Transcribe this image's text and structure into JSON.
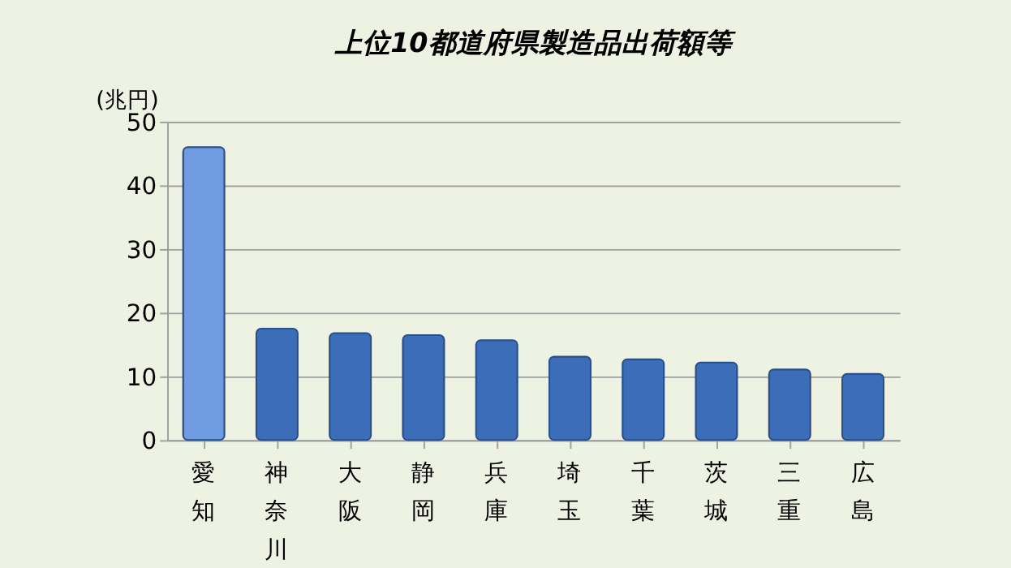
{
  "chart_data": {
    "type": "bar",
    "title": "上位10都道府県製造品出荷額等",
    "ylabel": "(兆円)",
    "categories": [
      "愛知",
      "神奈川",
      "大阪",
      "静岡",
      "兵庫",
      "埼玉",
      "千葉",
      "茨城",
      "三重",
      "広島"
    ],
    "values": [
      46,
      17.5,
      16.8,
      16.5,
      15.7,
      13.1,
      12.7,
      12.2,
      11.1,
      10.4
    ],
    "colors": [
      "#6f9be0",
      "#3b6db8",
      "#3b6db8",
      "#3b6db8",
      "#3b6db8",
      "#3b6db8",
      "#3b6db8",
      "#3b6db8",
      "#3b6db8",
      "#3b6db8"
    ],
    "ylim": [
      0,
      50
    ],
    "yticks": [
      0,
      10,
      20,
      30,
      40,
      50
    ],
    "grid": "y"
  }
}
